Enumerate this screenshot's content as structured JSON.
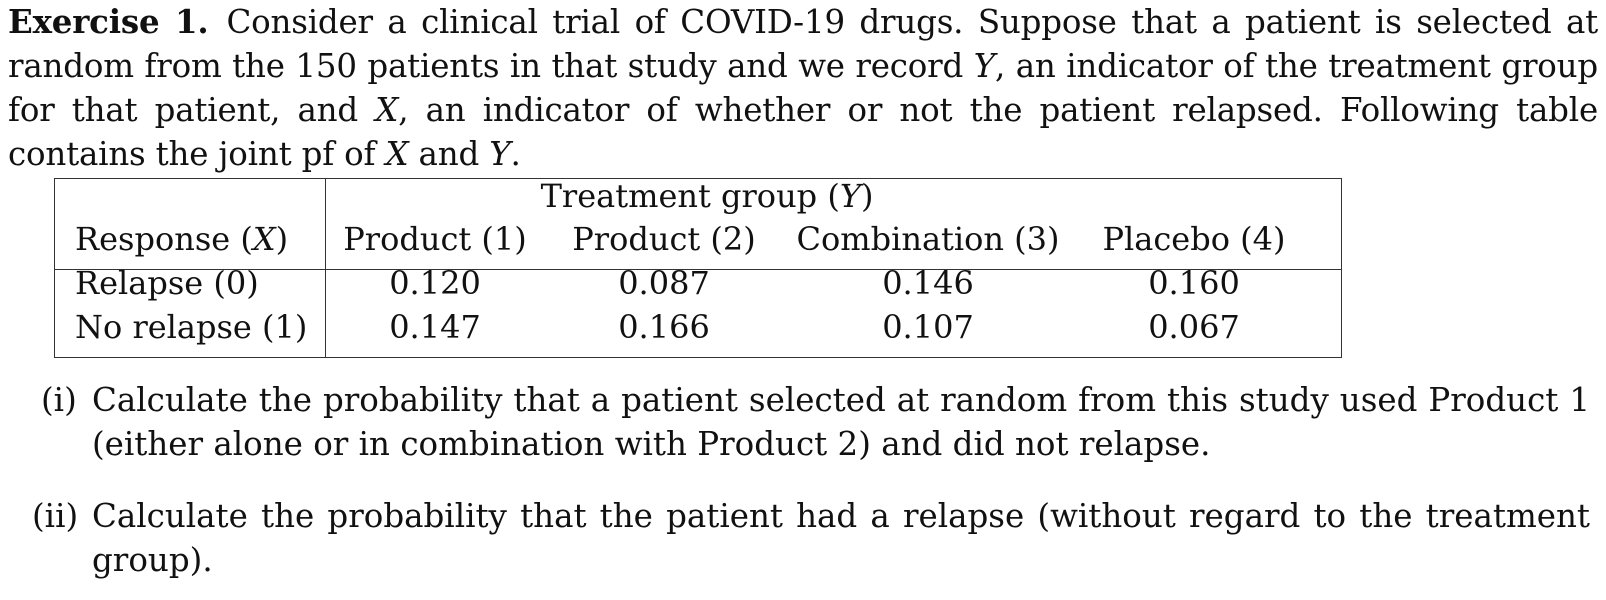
{
  "exercise": {
    "label": "Exercise 1.",
    "intro_part1": "Consider a clinical trial of COVID-19 drugs. Suppose that a patient is selected at random from the 150 patients in that study and we record ",
    "var_y": "Y",
    "intro_part2": ", an indicator of the treatment group for that patient, and ",
    "var_x": "X",
    "intro_part3": ", an indicator of whether or not the patient relapsed. Following table contains the joint pf of ",
    "var_x2": "X",
    "intro_part4": " and ",
    "var_y2": "Y",
    "intro_part5": "."
  },
  "table": {
    "group_header_prefix": "Treatment group (",
    "group_header_var": "Y",
    "group_header_suffix": ")",
    "response_header_prefix": "Response (",
    "response_header_var": "X",
    "response_header_suffix": ")",
    "columns": [
      "Product (1)",
      "Product (2)",
      "Combination (3)",
      "Placebo (4)"
    ],
    "rows": [
      {
        "label": "Relapse (0)",
        "values": [
          "0.120",
          "0.087",
          "0.146",
          "0.160"
        ]
      },
      {
        "label": "No relapse (1)",
        "values": [
          "0.147",
          "0.166",
          "0.107",
          "0.067"
        ]
      }
    ]
  },
  "questions": [
    {
      "number": "(i)",
      "text": "Calculate the probability that a patient selected at random from this study used Product 1 (either alone or in combination with Product 2) and did not relapse."
    },
    {
      "number": "(ii)",
      "text": "Calculate the probability that the patient had a relapse (without regard to the treatment group)."
    }
  ]
}
